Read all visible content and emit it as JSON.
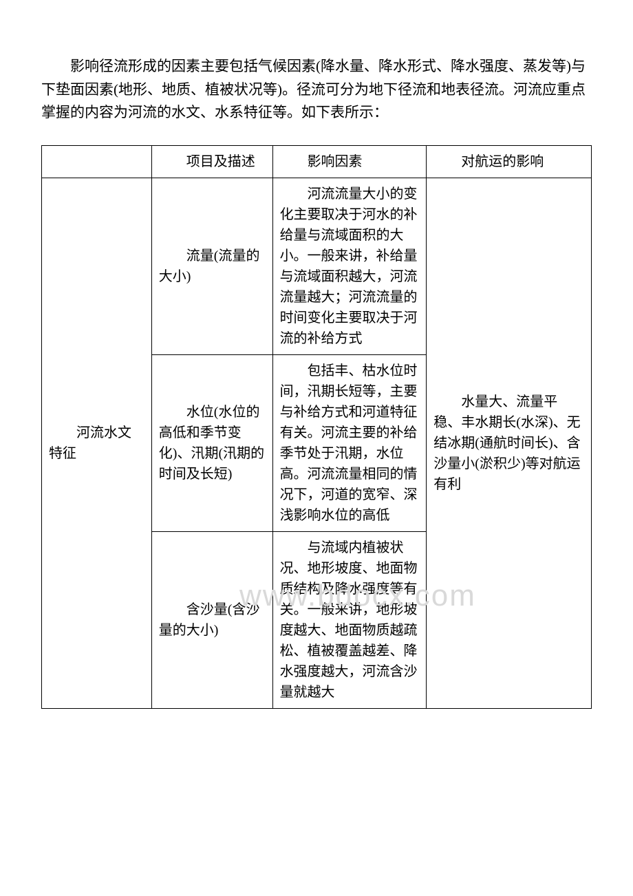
{
  "intro": "影响径流形成的因素主要包括气候因素(降水量、降水形式、降水强度、蒸发等)与下垫面因素(地形、地质、植被状况等)。径流可分为地下径流和地表径流。河流应重点掌握的内容为河流的水文、水系特征等。如下表所示：",
  "watermark": "www.bdocx.com",
  "table": {
    "header": {
      "col1": "",
      "col2": "项目及描述",
      "col3": "影响因素",
      "col4": "对航运的影响"
    },
    "rowspan_label": "河流水文特征",
    "rows": [
      {
        "col2": "流量(流量的大小)",
        "col3": "河流流量大小的变化主要取决于河水的补给量与流域面积的大小。一般来讲，补给量与流域面积越大，河流流量越大；河流流量的时间变化主要取决于河流的补给方式"
      },
      {
        "col2": "水位(水位的高低和季节变化)、汛期(汛期的时间及长短)",
        "col3": "包括丰、枯水位时间，汛期长短等，主要与补给方式和河道特征有关。河流主要的补给季节处于汛期，水位高。河流流量相同的情况下，河道的宽窄、深浅影响水位的高低"
      },
      {
        "col2": "含沙量(含沙量的大小)",
        "col3": "与流域内植被状况、地形坡度、地面物质结构及降水强度等有关。一般来讲，地形坡度越大、地面物质越疏松、植被覆盖越差、降水强度越大，河流含沙量就越大"
      }
    ],
    "col4_merged": "水量大、流量平稳、丰水期长(水深)、无结冰期(通航时间长)、含沙量小(淤积少)等对航运有利"
  },
  "styles": {
    "page_bg": "#ffffff",
    "text_color": "#000000",
    "border_color": "#000000",
    "watermark_color": "#d9d9d9",
    "intro_fontsize": 21,
    "cell_fontsize": 20,
    "watermark_fontsize": 44
  }
}
